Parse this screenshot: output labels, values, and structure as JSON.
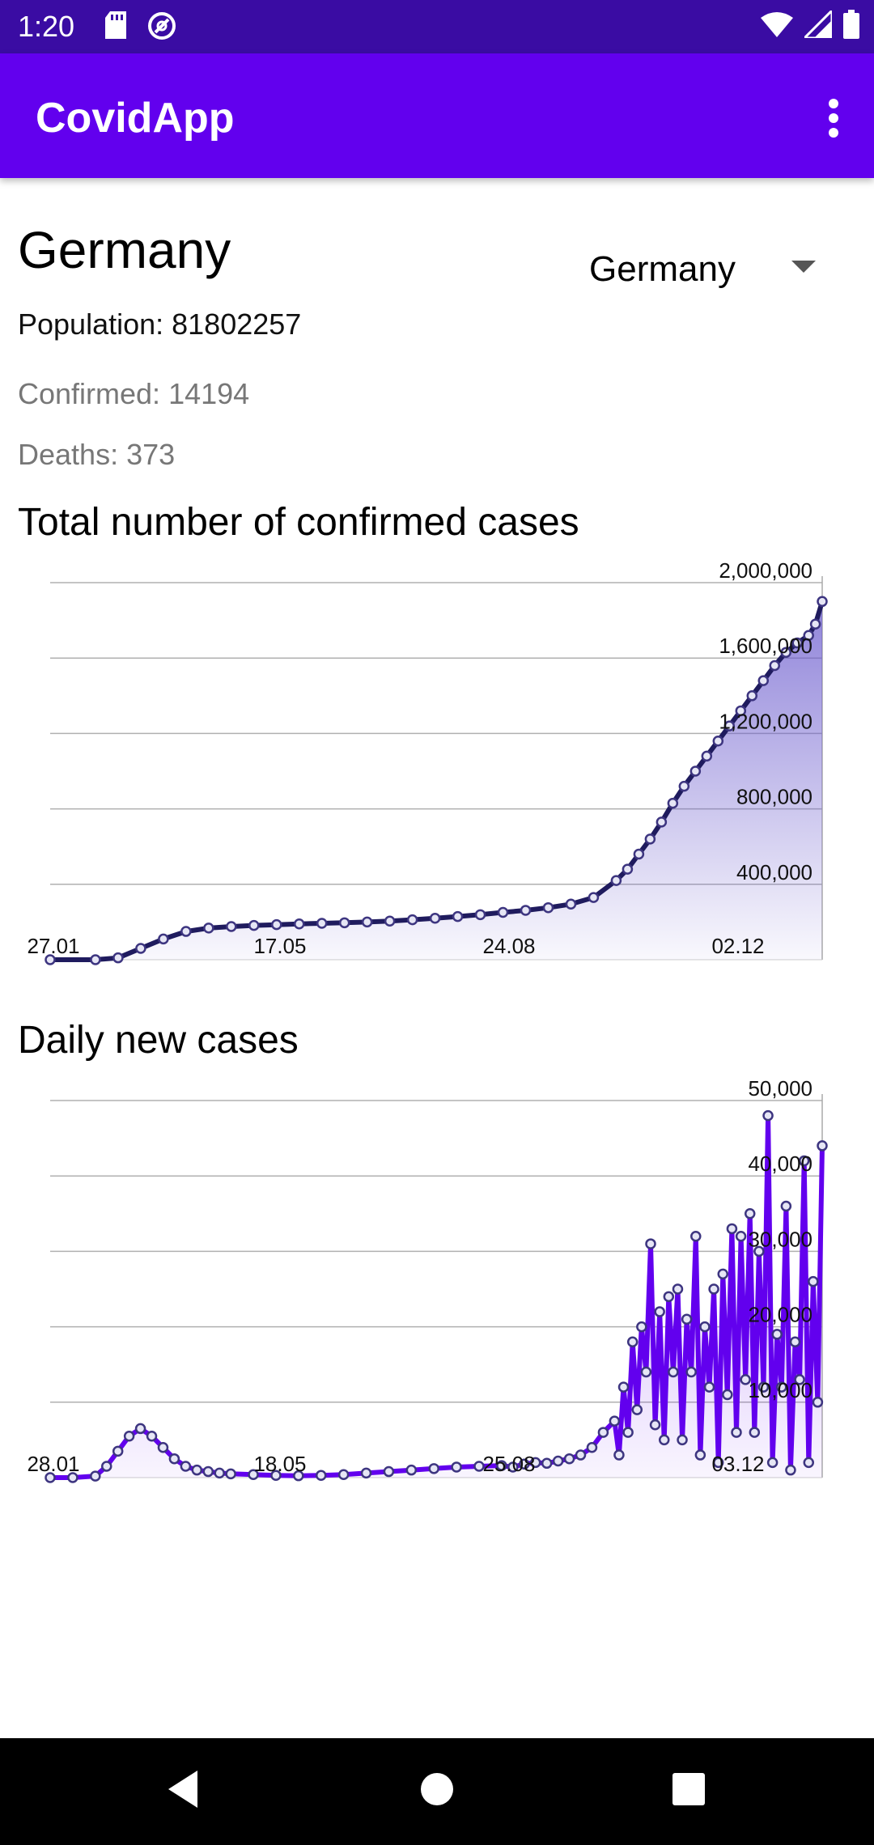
{
  "status_bar": {
    "time": "1:20",
    "left_icons": [
      "sd-card-icon",
      "vpn-icon"
    ],
    "right_icons": [
      "wifi-icon",
      "cell-signal-icon",
      "battery-icon"
    ]
  },
  "app_bar": {
    "title": "CovidApp",
    "menu_icon": "overflow-menu-icon"
  },
  "country": {
    "title": "Germany",
    "selector_value": "Germany",
    "population": "Population: 81802257",
    "confirmed": "Confirmed: 14194",
    "deaths": "Deaths: 373"
  },
  "sections": {
    "total_title": "Total number of confirmed cases",
    "daily_title": "Daily new cases"
  },
  "colors": {
    "status_bar": "#3a0ca3",
    "app_bar": "#6200ee",
    "total_line": "#1f1b5e",
    "total_fill": "#6a5acd",
    "daily_line": "#6200ee",
    "marker_fill": "#e6e6f5"
  },
  "chart_data": [
    {
      "type": "area",
      "title": "Total number of confirmed cases",
      "xlabel": "",
      "ylabel": "",
      "x_ticks": [
        "27.01",
        "17.05",
        "24.08",
        "02.12"
      ],
      "y_ticks": [
        "2,000,000",
        "1,600,000",
        "1,200,000",
        "800,000",
        "400,000"
      ],
      "y_tick_values": [
        2000000,
        1600000,
        1200000,
        800000,
        400000
      ],
      "ylim": [
        0,
        2000000
      ],
      "grid": true,
      "series": [
        {
          "x_day": [
            0,
            20,
            30,
            40,
            50,
            60,
            70,
            80,
            90,
            100,
            110,
            120,
            130,
            140,
            150,
            160,
            170,
            180,
            190,
            200,
            210,
            220,
            230,
            240,
            250,
            255,
            260,
            265,
            270,
            275,
            280,
            285,
            290,
            295,
            300,
            305,
            310,
            315,
            320,
            325,
            330,
            335,
            338,
            341
          ],
          "values": [
            0,
            0,
            10000,
            60000,
            110000,
            150000,
            168000,
            176000,
            182000,
            186000,
            190000,
            193000,
            196000,
            200000,
            205000,
            212000,
            220000,
            229000,
            239000,
            251000,
            262000,
            276000,
            295000,
            330000,
            420000,
            480000,
            560000,
            640000,
            730000,
            830000,
            920000,
            1000000,
            1080000,
            1160000,
            1240000,
            1320000,
            1400000,
            1480000,
            1560000,
            1630000,
            1680000,
            1720000,
            1780000,
            1900000
          ]
        }
      ]
    },
    {
      "type": "line",
      "title": "Daily new cases",
      "xlabel": "",
      "ylabel": "",
      "x_ticks": [
        "28.01",
        "18.05",
        "25.08",
        "03.12"
      ],
      "y_ticks": [
        "50,000",
        "40,000",
        "30,000",
        "20,000",
        "10,000"
      ],
      "y_tick_values": [
        50000,
        40000,
        30000,
        20000,
        10000
      ],
      "ylim": [
        0,
        50000
      ],
      "grid": true,
      "series": [
        {
          "x_day": [
            0,
            10,
            20,
            25,
            30,
            35,
            40,
            45,
            50,
            55,
            60,
            65,
            70,
            75,
            80,
            90,
            100,
            110,
            120,
            130,
            140,
            150,
            160,
            170,
            180,
            190,
            200,
            205,
            210,
            215,
            220,
            225,
            230,
            235,
            240,
            245,
            250,
            252,
            254,
            256,
            258,
            260,
            262,
            264,
            266,
            268,
            270,
            272,
            274,
            276,
            278,
            280,
            282,
            284,
            286,
            288,
            290,
            292,
            294,
            296,
            298,
            300,
            302,
            304,
            306,
            308,
            310,
            312,
            314,
            316,
            318,
            320,
            322,
            324,
            326,
            328,
            330,
            332,
            334,
            336,
            338,
            340,
            342
          ],
          "values": [
            0,
            0,
            200,
            1500,
            3500,
            5500,
            6500,
            5500,
            4000,
            2500,
            1500,
            1000,
            800,
            600,
            500,
            400,
            300,
            250,
            300,
            400,
            600,
            800,
            1000,
            1200,
            1400,
            1500,
            1600,
            1400,
            1800,
            2000,
            1900,
            2200,
            2500,
            3000,
            4000,
            6000,
            7500,
            3000,
            12000,
            6000,
            18000,
            9000,
            20000,
            14000,
            31000,
            7000,
            22000,
            5000,
            24000,
            14000,
            25000,
            5000,
            21000,
            14000,
            32000,
            3000,
            20000,
            12000,
            25000,
            2000,
            27000,
            11000,
            33000,
            6000,
            32000,
            13000,
            35000,
            6000,
            30000,
            12000,
            48000,
            2000,
            19000,
            12000,
            36000,
            1000,
            18000,
            13000,
            42000,
            2000,
            26000,
            10000,
            44000
          ]
        }
      ]
    }
  ]
}
